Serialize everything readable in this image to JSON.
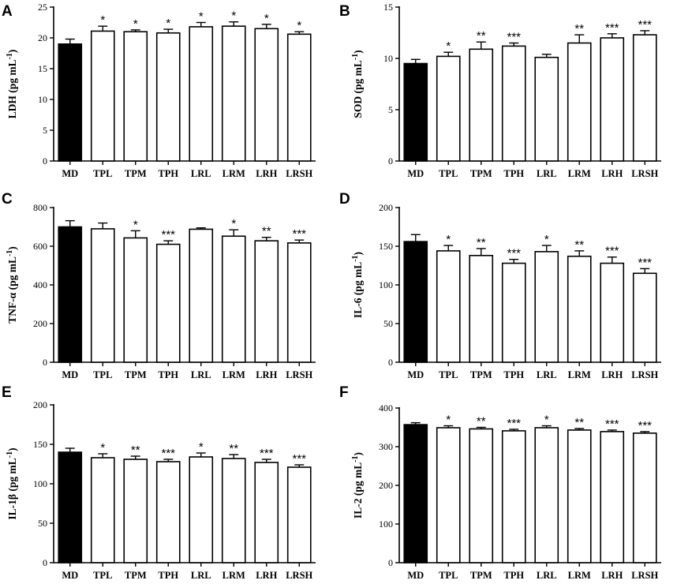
{
  "figure": {
    "bar_color_control": "#000000",
    "bar_color_treatment": "#ffffff",
    "axis_color": "#000000"
  },
  "chart_data": [
    {
      "panel": "A",
      "type": "bar",
      "ylabel": "LDH (pg mL",
      "ylabel_sup": "-1",
      "ylabel_tail": ")",
      "ylim": [
        0,
        25
      ],
      "yticks": [
        "0",
        "5",
        "10",
        "15",
        "20",
        "25"
      ],
      "ytick_values": [
        0,
        5,
        10,
        15,
        20,
        25
      ],
      "categories": [
        "MD",
        "TPL",
        "TPM",
        "TPH",
        "LRL",
        "LRM",
        "LRH",
        "LRSH"
      ],
      "values": [
        19.0,
        21.1,
        21.0,
        20.8,
        21.8,
        21.9,
        21.5,
        20.6
      ],
      "errors": [
        0.8,
        0.8,
        0.3,
        0.6,
        0.7,
        0.7,
        0.7,
        0.4
      ],
      "significance": [
        "",
        "*",
        "*",
        "*",
        "*",
        "*",
        "*",
        "*"
      ]
    },
    {
      "panel": "B",
      "type": "bar",
      "ylabel": "SOD (pg mL",
      "ylabel_sup": "-1",
      "ylabel_tail": ")",
      "ylim": [
        0,
        15
      ],
      "yticks": [
        "0",
        "5",
        "10",
        "15"
      ],
      "ytick_values": [
        0,
        5,
        10,
        15
      ],
      "categories": [
        "MD",
        "TPL",
        "TPM",
        "TPH",
        "LRL",
        "LRM",
        "LRH",
        "LRSH"
      ],
      "values": [
        9.5,
        10.2,
        10.9,
        11.2,
        10.1,
        11.5,
        12.0,
        12.3
      ],
      "errors": [
        0.4,
        0.4,
        0.7,
        0.3,
        0.3,
        0.8,
        0.4,
        0.4
      ],
      "significance": [
        "",
        "*",
        "**",
        "***",
        "",
        "**",
        "***",
        "***"
      ]
    },
    {
      "panel": "C",
      "type": "bar",
      "ylabel": "TNF-α (pg mL",
      "ylabel_sup": "-1",
      "ylabel_tail": ")",
      "ylim": [
        0,
        800
      ],
      "yticks": [
        "0",
        "200",
        "400",
        "600",
        "800"
      ],
      "ytick_values": [
        0,
        200,
        400,
        600,
        800
      ],
      "categories": [
        "MD",
        "TPL",
        "TPM",
        "TPH",
        "LRL",
        "LRM",
        "LRH",
        "LRSH"
      ],
      "values": [
        700,
        690,
        643,
        610,
        688,
        652,
        628,
        617
      ],
      "errors": [
        32,
        30,
        37,
        18,
        7,
        33,
        18,
        15
      ],
      "significance": [
        "",
        "",
        "*",
        "***",
        "",
        "*",
        "**",
        "***"
      ]
    },
    {
      "panel": "D",
      "type": "bar",
      "ylabel": "IL-6 (pg mL",
      "ylabel_sup": "-1",
      "ylabel_tail": ")",
      "ylim": [
        0,
        200
      ],
      "yticks": [
        "0",
        "50",
        "100",
        "150",
        "200"
      ],
      "ytick_values": [
        0,
        50,
        100,
        150,
        200
      ],
      "categories": [
        "MD",
        "TPL",
        "TPM",
        "TPH",
        "LRL",
        "LRM",
        "LRH",
        "LRSH"
      ],
      "values": [
        156,
        144,
        138,
        128,
        143,
        137,
        128,
        115
      ],
      "errors": [
        9,
        7,
        9,
        5,
        8,
        7,
        8,
        6
      ],
      "significance": [
        "",
        "*",
        "**",
        "***",
        "*",
        "**",
        "***",
        "***"
      ]
    },
    {
      "panel": "E",
      "type": "bar",
      "ylabel": "IL-1β (pg mL",
      "ylabel_sup": "-1",
      "ylabel_tail": ")",
      "ylim": [
        0,
        200
      ],
      "yticks": [
        "0",
        "50",
        "100",
        "150",
        "200"
      ],
      "ytick_values": [
        0,
        50,
        100,
        150,
        200
      ],
      "categories": [
        "MD",
        "TPL",
        "TPM",
        "TPH",
        "LRL",
        "LRM",
        "LRH",
        "LRSH"
      ],
      "values": [
        140,
        133,
        131,
        128,
        134,
        132,
        127,
        121
      ],
      "errors": [
        5,
        5,
        4,
        3,
        5,
        5,
        4,
        3
      ],
      "significance": [
        "",
        "*",
        "**",
        "***",
        "*",
        "**",
        "***",
        "***"
      ]
    },
    {
      "panel": "F",
      "type": "bar",
      "ylabel": "IL-2 (pg mL",
      "ylabel_sup": "-1",
      "ylabel_tail": ")",
      "ylim": [
        0,
        400
      ],
      "yticks": [
        "0",
        "100",
        "200",
        "300",
        "400"
      ],
      "ytick_values": [
        0,
        100,
        200,
        300,
        400
      ],
      "categories": [
        "MD",
        "TPL",
        "TPM",
        "TPH",
        "LRL",
        "LRM",
        "LRH",
        "LRSH"
      ],
      "values": [
        357,
        349,
        346,
        341,
        349,
        343,
        339,
        335
      ],
      "errors": [
        5,
        5,
        4,
        4,
        5,
        4,
        4,
        4
      ],
      "significance": [
        "",
        "*",
        "**",
        "***",
        "*",
        "**",
        "***",
        "***"
      ]
    }
  ]
}
